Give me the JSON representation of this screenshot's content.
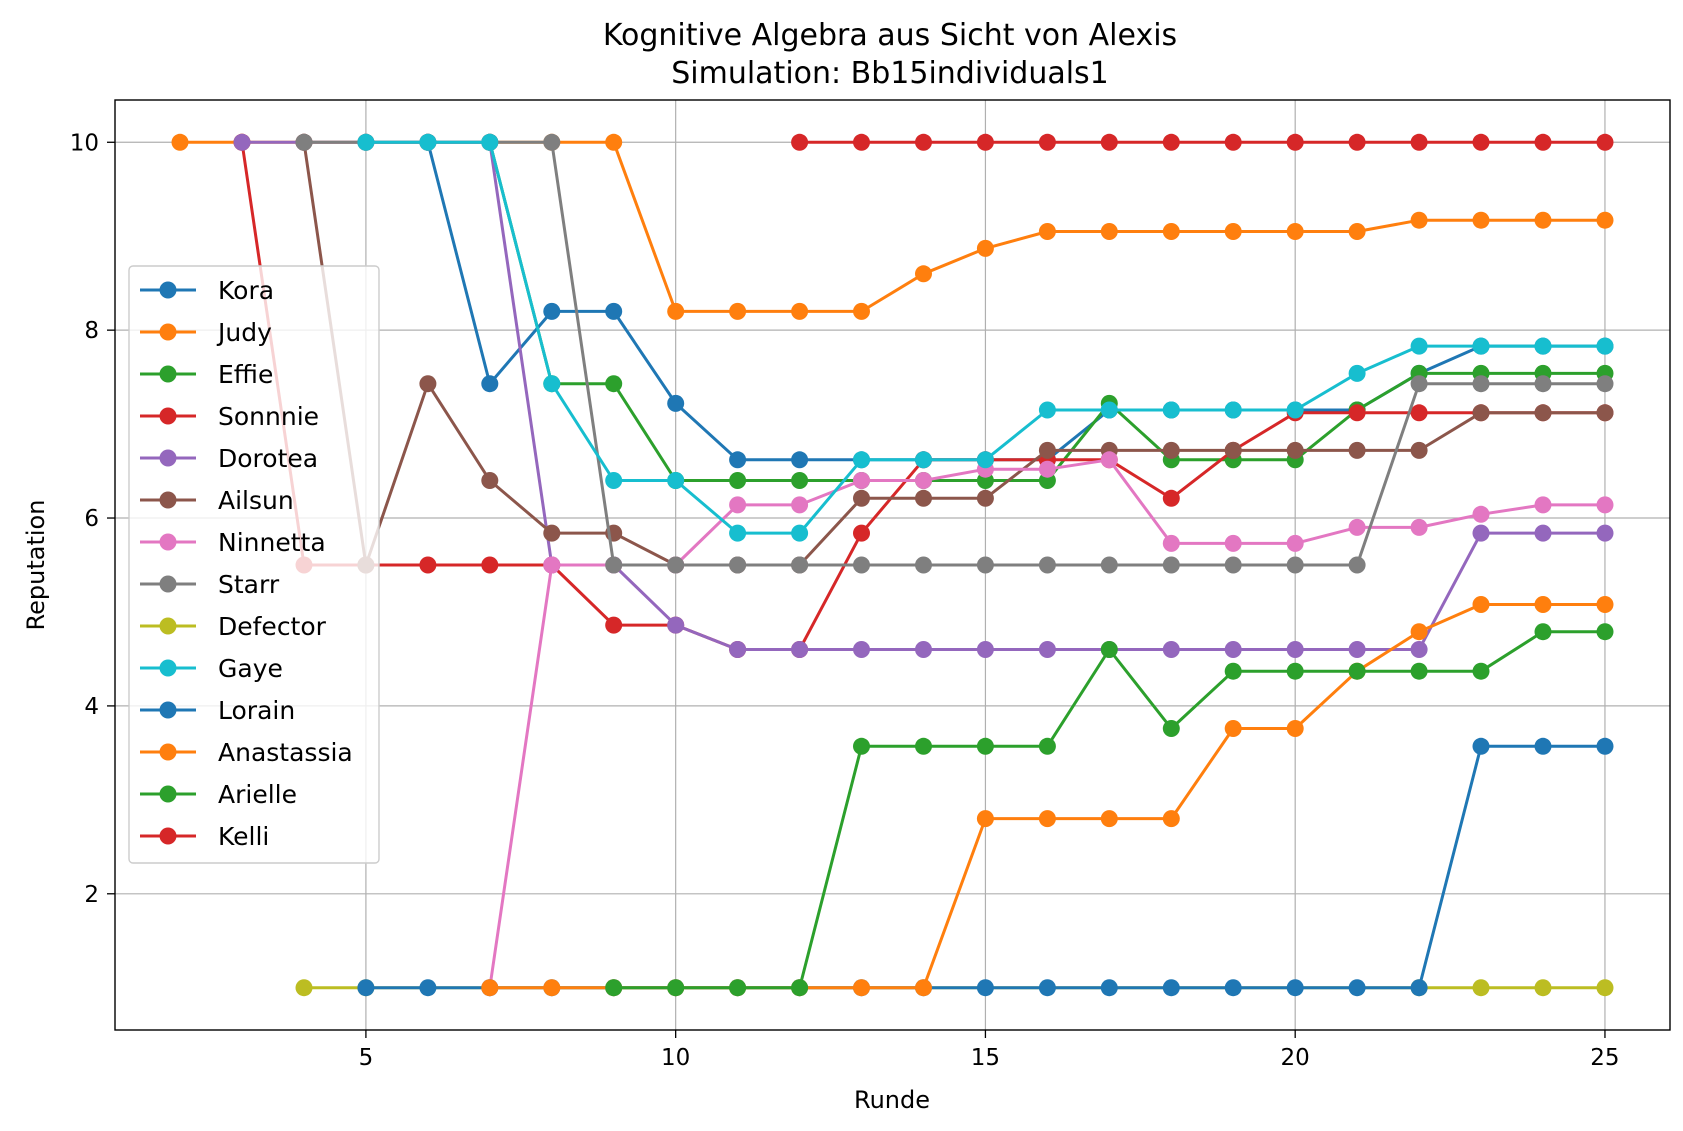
{
  "chart_data": {
    "type": "line",
    "title": "Kognitive Algebra aus Sicht von Alexis",
    "subtitle": "Simulation: Bb15individuals1",
    "xlabel": "Runde",
    "ylabel": "Reputation",
    "xlim": [
      0.95,
      26.05
    ],
    "ylim": [
      0.55,
      10.45
    ],
    "xticks": [
      5,
      10,
      15,
      20,
      25
    ],
    "yticks": [
      2,
      4,
      6,
      8,
      10
    ],
    "grid": true,
    "legend_position": "center-left",
    "series": [
      {
        "name": "Kora",
        "color": "#1f77b4",
        "x": [
          6,
          7,
          8,
          9,
          10,
          11,
          12,
          13,
          14,
          15,
          16,
          17,
          18,
          19,
          20,
          21,
          22,
          23,
          24,
          25
        ],
        "y": [
          10,
          7.43,
          8.2,
          8.2,
          7.22,
          6.62,
          6.62,
          6.62,
          6.62,
          6.62,
          6.62,
          7.15,
          7.15,
          7.15,
          7.15,
          7.15,
          7.54,
          7.83,
          7.83,
          7.83
        ]
      },
      {
        "name": "Judy",
        "color": "#ff7f0e",
        "x": [
          2,
          3,
          4,
          5,
          6,
          7,
          8,
          9,
          10,
          11,
          12,
          13,
          14,
          15,
          16,
          17,
          18,
          19,
          20,
          21,
          22,
          23,
          24,
          25
        ],
        "y": [
          10,
          10,
          10,
          10,
          10,
          10,
          10,
          10,
          8.2,
          8.2,
          8.2,
          8.2,
          8.6,
          8.87,
          9.05,
          9.05,
          9.05,
          9.05,
          9.05,
          9.05,
          9.17,
          9.17,
          9.17,
          9.17
        ]
      },
      {
        "name": "Effie",
        "color": "#2ca02c",
        "x": [
          7,
          8,
          9,
          10,
          11,
          12,
          13,
          14,
          15,
          16,
          17,
          18,
          19,
          20,
          21,
          22,
          23,
          24,
          25
        ],
        "y": [
          10,
          7.43,
          7.43,
          6.4,
          6.4,
          6.4,
          6.4,
          6.4,
          6.4,
          6.4,
          7.22,
          6.62,
          6.62,
          6.62,
          7.15,
          7.54,
          7.54,
          7.54,
          7.54
        ]
      },
      {
        "name": "Sonnnie",
        "color": "#d62728",
        "x": [
          3,
          4,
          5,
          6,
          7,
          8,
          9,
          10,
          11,
          12,
          13,
          14,
          15,
          16,
          17,
          18,
          19,
          20,
          21,
          22,
          23,
          24,
          25
        ],
        "y": [
          10,
          5.5,
          5.5,
          5.5,
          5.5,
          5.5,
          4.86,
          4.86,
          4.6,
          4.6,
          5.84,
          6.62,
          6.62,
          6.62,
          6.62,
          6.21,
          6.72,
          7.12,
          7.12,
          7.12,
          7.12,
          7.12,
          7.12
        ]
      },
      {
        "name": "Dorotea",
        "color": "#9467bd",
        "x": [
          3,
          4,
          5,
          6,
          7,
          8,
          9,
          10,
          11,
          12,
          13,
          14,
          15,
          16,
          17,
          18,
          19,
          20,
          21,
          22,
          23,
          24,
          25
        ],
        "y": [
          10,
          10,
          10,
          10,
          10,
          5.5,
          5.5,
          4.86,
          4.6,
          4.6,
          4.6,
          4.6,
          4.6,
          4.6,
          4.6,
          4.6,
          4.6,
          4.6,
          4.6,
          4.6,
          5.84,
          5.84,
          5.84
        ]
      },
      {
        "name": "Ailsun",
        "color": "#8c564b",
        "x": [
          4,
          5,
          6,
          7,
          8,
          9,
          10,
          11,
          12,
          13,
          14,
          15,
          16,
          17,
          18,
          19,
          20,
          21,
          22,
          23,
          24,
          25
        ],
        "y": [
          10,
          5.5,
          7.43,
          6.4,
          5.84,
          5.84,
          5.5,
          5.5,
          5.5,
          6.21,
          6.21,
          6.21,
          6.72,
          6.72,
          6.72,
          6.72,
          6.72,
          6.72,
          6.72,
          7.12,
          7.12,
          7.12
        ]
      },
      {
        "name": "Ninnetta",
        "color": "#e377c2",
        "x": [
          7,
          8,
          9,
          10,
          11,
          12,
          13,
          14,
          15,
          16,
          17,
          18,
          19,
          20,
          21,
          22,
          23,
          24,
          25
        ],
        "y": [
          1,
          5.5,
          5.5,
          5.5,
          6.14,
          6.14,
          6.4,
          6.4,
          6.52,
          6.52,
          6.62,
          5.73,
          5.73,
          5.73,
          5.9,
          5.9,
          6.04,
          6.14,
          6.14
        ]
      },
      {
        "name": "Starr",
        "color": "#7f7f7f",
        "x": [
          4,
          5,
          6,
          7,
          8,
          9,
          10,
          11,
          12,
          13,
          14,
          15,
          16,
          17,
          18,
          19,
          20,
          21,
          22,
          23,
          24,
          25
        ],
        "y": [
          10,
          10,
          10,
          10,
          10,
          5.5,
          5.5,
          5.5,
          5.5,
          5.5,
          5.5,
          5.5,
          5.5,
          5.5,
          5.5,
          5.5,
          5.5,
          5.5,
          7.43,
          7.43,
          7.43,
          7.43
        ]
      },
      {
        "name": "Defector",
        "color": "#bcbd22",
        "x": [
          4,
          5,
          22,
          23,
          24,
          25
        ],
        "y": [
          1,
          1,
          1,
          1,
          1,
          1
        ]
      },
      {
        "name": "Gaye",
        "color": "#17becf",
        "x": [
          5,
          6,
          7,
          8,
          9,
          10,
          11,
          12,
          13,
          14,
          15,
          16,
          17,
          18,
          19,
          20,
          21,
          22,
          23,
          24,
          25
        ],
        "y": [
          10,
          10,
          10,
          7.43,
          6.4,
          6.4,
          5.84,
          5.84,
          6.62,
          6.62,
          6.62,
          7.15,
          7.15,
          7.15,
          7.15,
          7.15,
          7.54,
          7.83,
          7.83,
          7.83,
          7.83
        ]
      },
      {
        "name": "Lorain",
        "color": "#1f77b4",
        "x": [
          5,
          6,
          7,
          8,
          9,
          10,
          11,
          12,
          13,
          14,
          15,
          16,
          17,
          18,
          19,
          20,
          21,
          22,
          23,
          24,
          25
        ],
        "y": [
          1,
          1,
          1,
          1,
          1,
          1,
          1,
          1,
          1,
          1,
          1,
          1,
          1,
          1,
          1,
          1,
          1,
          1,
          3.57,
          3.57,
          3.57
        ]
      },
      {
        "name": "Anastassia",
        "color": "#ff7f0e",
        "x": [
          7,
          8,
          9,
          10,
          11,
          12,
          13,
          14,
          15,
          16,
          17,
          18,
          19,
          20,
          21,
          22,
          23,
          24,
          25
        ],
        "y": [
          1,
          1,
          1,
          1,
          1,
          1,
          1,
          1,
          2.8,
          2.8,
          2.8,
          2.8,
          3.76,
          3.76,
          4.37,
          4.79,
          5.08,
          5.08,
          5.08
        ]
      },
      {
        "name": "Arielle",
        "color": "#2ca02c",
        "x": [
          9,
          10,
          11,
          12,
          13,
          14,
          15,
          16,
          17,
          18,
          19,
          20,
          21,
          22,
          23,
          24,
          25
        ],
        "y": [
          1,
          1,
          1,
          1,
          3.57,
          3.57,
          3.57,
          3.57,
          4.6,
          3.76,
          4.37,
          4.37,
          4.37,
          4.37,
          4.37,
          4.79,
          4.79
        ]
      },
      {
        "name": "Kelli",
        "color": "#d62728",
        "x": [
          12,
          13,
          14,
          15,
          16,
          17,
          18,
          19,
          20,
          21,
          22,
          23,
          24,
          25
        ],
        "y": [
          10,
          10,
          10,
          10,
          10,
          10,
          10,
          10,
          10,
          10,
          10,
          10,
          10,
          10
        ]
      }
    ]
  }
}
